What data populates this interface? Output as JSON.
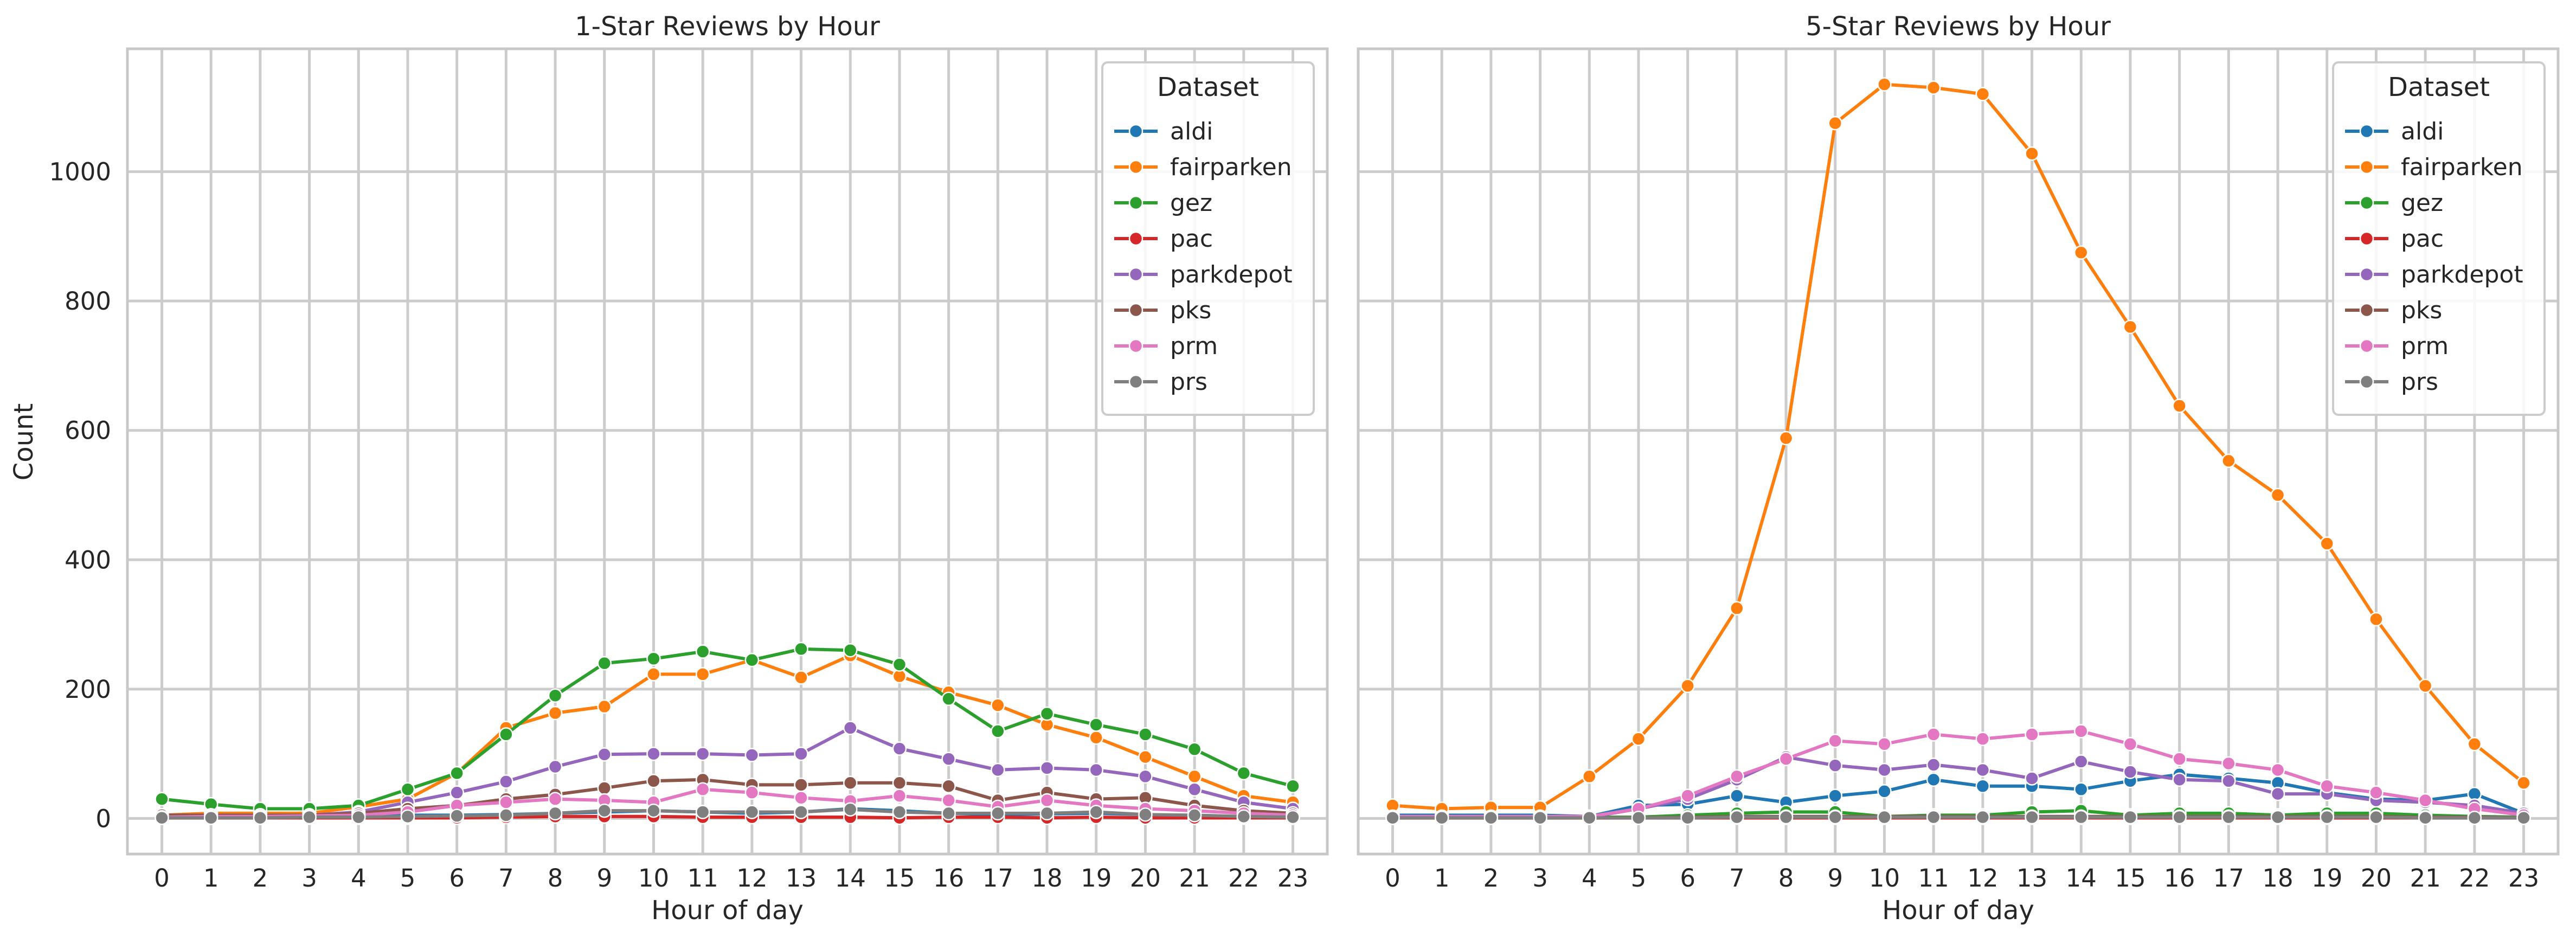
{
  "figure": {
    "ylabel": "Count",
    "xlabel": "Hour of day",
    "legend_title": "Dataset"
  },
  "colors": {
    "aldi": "#1f77b4",
    "fairparken": "#ff7f0e",
    "gez": "#2ca02c",
    "pac": "#d62728",
    "parkdepot": "#9467bd",
    "pks": "#8c564b",
    "prm": "#e377c2",
    "prs": "#7f7f7f"
  },
  "chart_data": [
    {
      "type": "line",
      "title": "1-Star Reviews by Hour",
      "xlabel": "Hour of day",
      "ylabel": "Count",
      "x": [
        0,
        1,
        2,
        3,
        4,
        5,
        6,
        7,
        8,
        9,
        10,
        11,
        12,
        13,
        14,
        15,
        16,
        17,
        18,
        19,
        20,
        21,
        22,
        23
      ],
      "ylim": [
        -55,
        1190
      ],
      "yticks": [
        0,
        200,
        400,
        600,
        800,
        1000
      ],
      "grid": true,
      "legend_position": "top-right",
      "legend_title": "Dataset",
      "series": [
        {
          "name": "aldi",
          "color": "#1f77b4",
          "values": [
            5,
            3,
            2,
            2,
            3,
            5,
            5,
            6,
            8,
            10,
            12,
            10,
            8,
            10,
            15,
            12,
            8,
            6,
            7,
            8,
            6,
            4,
            3,
            2
          ]
        },
        {
          "name": "fairparken",
          "color": "#ff7f0e",
          "values": [
            5,
            8,
            8,
            8,
            18,
            30,
            70,
            140,
            163,
            173,
            223,
            223,
            245,
            218,
            252,
            220,
            195,
            175,
            145,
            125,
            95,
            65,
            35,
            25
          ]
        },
        {
          "name": "gez",
          "color": "#2ca02c",
          "values": [
            30,
            22,
            15,
            15,
            20,
            45,
            70,
            130,
            190,
            240,
            247,
            258,
            245,
            262,
            260,
            238,
            185,
            135,
            162,
            145,
            130,
            107,
            70,
            50
          ]
        },
        {
          "name": "pac",
          "color": "#d62728",
          "values": [
            1,
            1,
            1,
            1,
            1,
            1,
            1,
            2,
            3,
            3,
            3,
            2,
            2,
            2,
            2,
            1,
            2,
            2,
            1,
            2,
            1,
            1,
            1,
            1
          ]
        },
        {
          "name": "parkdepot",
          "color": "#9467bd",
          "values": [
            3,
            5,
            5,
            5,
            10,
            25,
            40,
            57,
            80,
            99,
            100,
            100,
            98,
            100,
            140,
            108,
            92,
            75,
            78,
            75,
            65,
            45,
            25,
            15
          ]
        },
        {
          "name": "pks",
          "color": "#8c564b",
          "values": [
            5,
            5,
            5,
            5,
            8,
            15,
            20,
            30,
            37,
            47,
            58,
            60,
            52,
            52,
            55,
            55,
            50,
            28,
            40,
            30,
            32,
            20,
            12,
            8
          ]
        },
        {
          "name": "prm",
          "color": "#e377c2",
          "values": [
            2,
            3,
            3,
            4,
            5,
            10,
            20,
            25,
            30,
            28,
            25,
            45,
            40,
            32,
            27,
            35,
            28,
            18,
            28,
            20,
            15,
            12,
            8,
            5
          ]
        },
        {
          "name": "prs",
          "color": "#7f7f7f",
          "values": [
            1,
            1,
            1,
            2,
            2,
            3,
            4,
            5,
            8,
            12,
            12,
            10,
            10,
            10,
            14,
            10,
            8,
            8,
            8,
            10,
            6,
            5,
            3,
            2
          ]
        }
      ]
    },
    {
      "type": "line",
      "title": "5-Star Reviews by Hour",
      "xlabel": "Hour of day",
      "ylabel": "",
      "x": [
        0,
        1,
        2,
        3,
        4,
        5,
        6,
        7,
        8,
        9,
        10,
        11,
        12,
        13,
        14,
        15,
        16,
        17,
        18,
        19,
        20,
        21,
        22,
        23
      ],
      "ylim": [
        -55,
        1190
      ],
      "yticks": [
        0,
        200,
        400,
        600,
        800,
        1000
      ],
      "grid": true,
      "legend_position": "top-right",
      "legend_title": "Dataset",
      "series": [
        {
          "name": "aldi",
          "color": "#1f77b4",
          "values": [
            5,
            5,
            5,
            5,
            3,
            20,
            22,
            35,
            25,
            35,
            42,
            60,
            50,
            50,
            45,
            58,
            68,
            62,
            55,
            40,
            30,
            28,
            38,
            8
          ]
        },
        {
          "name": "fairparken",
          "color": "#ff7f0e",
          "values": [
            20,
            15,
            17,
            17,
            65,
            123,
            205,
            325,
            588,
            1075,
            1135,
            1130,
            1120,
            1028,
            875,
            760,
            638,
            553,
            500,
            425,
            308,
            205,
            115,
            55
          ]
        },
        {
          "name": "gez",
          "color": "#2ca02c",
          "values": [
            2,
            2,
            2,
            2,
            2,
            2,
            5,
            8,
            10,
            10,
            3,
            5,
            5,
            10,
            12,
            5,
            8,
            8,
            5,
            8,
            8,
            5,
            3,
            2
          ]
        },
        {
          "name": "pac",
          "color": "#d62728",
          "values": [
            1,
            1,
            1,
            1,
            1,
            1,
            1,
            1,
            1,
            1,
            1,
            1,
            1,
            1,
            1,
            1,
            1,
            1,
            1,
            1,
            1,
            1,
            1,
            1
          ]
        },
        {
          "name": "parkdepot",
          "color": "#9467bd",
          "values": [
            2,
            2,
            2,
            2,
            2,
            15,
            30,
            60,
            95,
            82,
            75,
            83,
            75,
            62,
            88,
            72,
            60,
            58,
            38,
            38,
            28,
            25,
            20,
            8
          ]
        },
        {
          "name": "pks",
          "color": "#8c564b",
          "values": [
            1,
            1,
            1,
            1,
            1,
            1,
            2,
            3,
            3,
            3,
            3,
            3,
            3,
            3,
            3,
            3,
            3,
            3,
            3,
            3,
            3,
            2,
            2,
            1
          ]
        },
        {
          "name": "prm",
          "color": "#e377c2",
          "values": [
            3,
            3,
            3,
            3,
            3,
            15,
            35,
            65,
            92,
            120,
            115,
            130,
            123,
            130,
            135,
            115,
            92,
            85,
            75,
            50,
            40,
            28,
            15,
            5
          ]
        },
        {
          "name": "prs",
          "color": "#7f7f7f",
          "values": [
            1,
            1,
            1,
            1,
            1,
            1,
            1,
            2,
            2,
            2,
            2,
            2,
            2,
            2,
            2,
            2,
            2,
            2,
            2,
            2,
            2,
            1,
            1,
            1
          ]
        }
      ]
    }
  ]
}
